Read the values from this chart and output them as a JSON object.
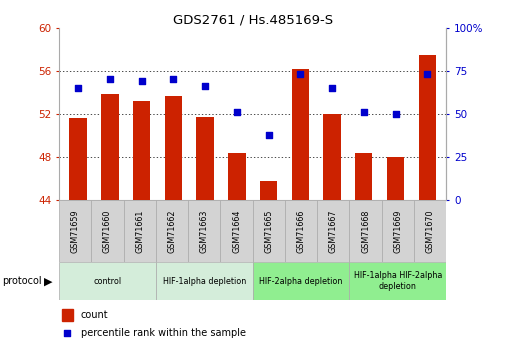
{
  "title": "GDS2761 / Hs.485169-S",
  "samples": [
    "GSM71659",
    "GSM71660",
    "GSM71661",
    "GSM71662",
    "GSM71663",
    "GSM71664",
    "GSM71665",
    "GSM71666",
    "GSM71667",
    "GSM71668",
    "GSM71669",
    "GSM71670"
  ],
  "counts": [
    51.6,
    53.8,
    53.2,
    53.7,
    51.7,
    48.4,
    45.8,
    56.2,
    52.0,
    48.4,
    48.0,
    57.5
  ],
  "percentiles": [
    65,
    70,
    69,
    70,
    66,
    51,
    38,
    73,
    65,
    51,
    50,
    73
  ],
  "ylim_left": [
    44,
    60
  ],
  "ylim_right": [
    0,
    100
  ],
  "yticks_left": [
    44,
    48,
    52,
    56,
    60
  ],
  "ytick_labels_left": [
    "44",
    "48",
    "52",
    "56",
    "60"
  ],
  "yticks_right": [
    0,
    25,
    50,
    75,
    100
  ],
  "ytick_labels_right": [
    "0",
    "25",
    "50",
    "75",
    "100%"
  ],
  "bar_color": "#CC2200",
  "dot_color": "#0000CC",
  "grid_color": "#000000",
  "bar_bottom": 44,
  "protocol_groups": [
    {
      "label": "control",
      "start": 0,
      "end": 3,
      "color": "#d4edda"
    },
    {
      "label": "HIF-1alpha depletion",
      "start": 3,
      "end": 6,
      "color": "#d4edda"
    },
    {
      "label": "HIF-2alpha depletion",
      "start": 6,
      "end": 9,
      "color": "#90ee90"
    },
    {
      "label": "HIF-1alpha HIF-2alpha\ndepletion",
      "start": 9,
      "end": 12,
      "color": "#90ee90"
    }
  ],
  "legend_count_label": "count",
  "legend_percentile_label": "percentile rank within the sample",
  "tick_label_color_left": "#CC2200",
  "tick_label_color_right": "#0000CC",
  "bg_color": "#ffffff",
  "plot_bg_color": "#ffffff",
  "sample_box_color": "#d3d3d3"
}
